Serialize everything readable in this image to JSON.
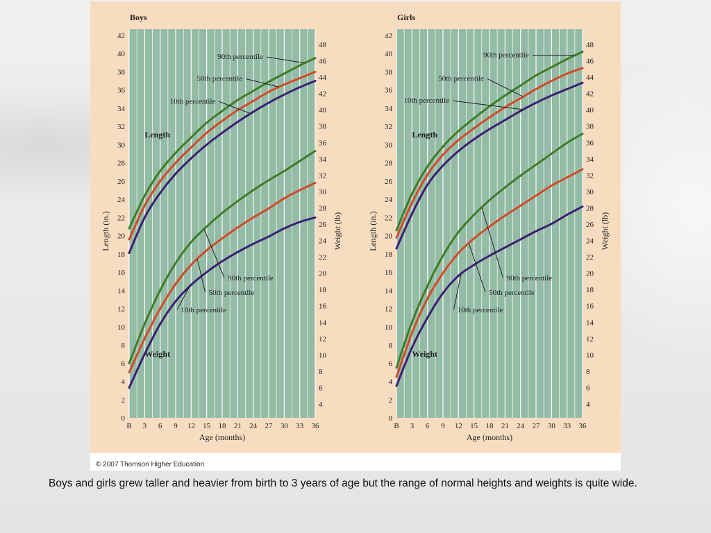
{
  "credit": "© 2007 Thomson Higher Education",
  "caption": "Boys and girls grew taller and heavier from birth to 3 years of age but the range of normal heights and weights is quite wide.",
  "colors": {
    "plot_bg": "#94bba5",
    "panel_bg": "#f8dcc0",
    "p90": "#3f7d27",
    "p50": "#d24a2a",
    "p10": "#3d1f73"
  },
  "chart_data": [
    {
      "type": "line",
      "title": "Boys",
      "xlabel": "Age (months)",
      "ylabel_left": "Length (in.)",
      "ylabel_right": "Weight (lb)",
      "x_ticks": [
        "B",
        "3",
        "6",
        "9",
        "12",
        "15",
        "18",
        "21",
        "24",
        "27",
        "30",
        "33",
        "36"
      ],
      "x_values": [
        0,
        3,
        6,
        9,
        12,
        15,
        18,
        21,
        24,
        27,
        30,
        33,
        36
      ],
      "xlim": [
        0,
        36
      ],
      "ylim_left": [
        0,
        42
      ],
      "y_ticks_left": [
        0,
        2,
        4,
        6,
        8,
        10,
        12,
        14,
        16,
        18,
        20,
        22,
        24,
        26,
        28,
        30,
        32,
        34,
        36,
        38,
        40,
        42
      ],
      "ylim_right": [
        4,
        48
      ],
      "y_ticks_right": [
        4,
        6,
        8,
        10,
        12,
        14,
        16,
        18,
        20,
        22,
        24,
        26,
        28,
        30,
        32,
        34,
        36,
        38,
        40,
        42,
        44,
        46,
        48
      ],
      "grid": true,
      "group_labels": [
        {
          "text": "Length",
          "x": 3,
          "y": 30.8
        },
        {
          "text": "Weight",
          "x": 3,
          "y": 6.7
        }
      ],
      "series": [
        {
          "group": "Length",
          "name": "90th percentile",
          "percentile": "p90",
          "axis": "left",
          "x": [
            0,
            3,
            6,
            9,
            12,
            15,
            18,
            21,
            24,
            27,
            30,
            33,
            36
          ],
          "y": [
            20.8,
            24.4,
            27.1,
            29.1,
            30.8,
            32.4,
            33.7,
            34.9,
            35.9,
            36.9,
            37.8,
            38.7,
            39.5
          ]
        },
        {
          "group": "Length",
          "name": "50th percentile",
          "percentile": "p50",
          "axis": "left",
          "x": [
            0,
            3,
            6,
            9,
            12,
            15,
            18,
            21,
            24,
            27,
            30,
            33,
            36
          ],
          "y": [
            19.6,
            23.3,
            26.0,
            28.0,
            29.7,
            31.3,
            32.6,
            33.8,
            34.8,
            35.8,
            36.6,
            37.3,
            38.0
          ]
        },
        {
          "group": "Length",
          "name": "10th percentile",
          "percentile": "p10",
          "axis": "left",
          "x": [
            0,
            3,
            6,
            9,
            12,
            15,
            18,
            21,
            24,
            27,
            30,
            33,
            36
          ],
          "y": [
            18.1,
            22.0,
            24.7,
            26.8,
            28.5,
            30.0,
            31.3,
            32.5,
            33.6,
            34.6,
            35.5,
            36.3,
            37.0
          ]
        },
        {
          "group": "Weight",
          "name": "90th percentile",
          "percentile": "p90",
          "axis": "left",
          "x": [
            0,
            3,
            6,
            9,
            12,
            15,
            18,
            21,
            24,
            27,
            30,
            33,
            36
          ],
          "y": [
            6.0,
            10.3,
            14.0,
            17.0,
            19.3,
            21.0,
            22.5,
            23.8,
            25.0,
            26.1,
            27.1,
            28.2,
            29.3
          ]
        },
        {
          "group": "Weight",
          "name": "50th percentile",
          "percentile": "p50",
          "axis": "left",
          "x": [
            0,
            3,
            6,
            9,
            12,
            15,
            18,
            21,
            24,
            27,
            30,
            33,
            36
          ],
          "y": [
            5.0,
            8.7,
            12.0,
            14.7,
            16.8,
            18.4,
            19.7,
            20.9,
            22.0,
            23.0,
            24.1,
            25.0,
            25.8
          ]
        },
        {
          "group": "Weight",
          "name": "10th percentile",
          "percentile": "p10",
          "axis": "left",
          "x": [
            0,
            3,
            6,
            9,
            12,
            15,
            18,
            21,
            24,
            27,
            30,
            33,
            36
          ],
          "y": [
            3.3,
            7.0,
            10.3,
            12.8,
            14.6,
            16.0,
            17.2,
            18.2,
            19.1,
            19.9,
            20.8,
            21.5,
            22.0
          ]
        }
      ],
      "annotations": [
        {
          "text": "90th percentile",
          "series_ref": 0,
          "at_x": 34,
          "label_x": 21.5,
          "label_y": 39.4
        },
        {
          "text": "50th percentile",
          "series_ref": 1,
          "at_x": 29,
          "label_x": 17.5,
          "label_y": 37.0
        },
        {
          "text": "10th percentile",
          "series_ref": 2,
          "at_x": 23.5,
          "label_x": 12.3,
          "label_y": 34.5
        },
        {
          "text": "90th percentile",
          "series_ref": 3,
          "at_x": 14.5,
          "label_x": 23.5,
          "label_y": 15.1
        },
        {
          "text": "50th percentile",
          "series_ref": 4,
          "at_x": 13.2,
          "label_x": 19.8,
          "label_y": 13.5
        },
        {
          "text": "10th percentile",
          "series_ref": 5,
          "at_x": 11.7,
          "label_x": 14.4,
          "label_y": 11.6
        }
      ]
    },
    {
      "type": "line",
      "title": "Girls",
      "xlabel": "Age (months)",
      "ylabel_left": "Length (in.)",
      "ylabel_right": "Weight (lb)",
      "x_ticks": [
        "B",
        "3",
        "6",
        "9",
        "12",
        "15",
        "18",
        "21",
        "24",
        "27",
        "30",
        "33",
        "36"
      ],
      "x_values": [
        0,
        3,
        6,
        9,
        12,
        15,
        18,
        21,
        24,
        27,
        30,
        33,
        36
      ],
      "xlim": [
        0,
        36
      ],
      "ylim_left": [
        0,
        42
      ],
      "y_ticks_left": [
        0,
        2,
        4,
        6,
        8,
        10,
        12,
        14,
        16,
        18,
        20,
        22,
        24,
        26,
        28,
        30,
        32,
        34,
        36,
        38,
        40,
        42
      ],
      "ylim_right": [
        4,
        48
      ],
      "y_ticks_right": [
        4,
        6,
        8,
        10,
        12,
        14,
        16,
        18,
        20,
        22,
        24,
        26,
        28,
        30,
        32,
        34,
        36,
        38,
        40,
        42,
        44,
        46,
        48
      ],
      "grid": true,
      "group_labels": [
        {
          "text": "Length",
          "x": 3,
          "y": 30.8
        },
        {
          "text": "Weight",
          "x": 3,
          "y": 6.7
        }
      ],
      "series": [
        {
          "group": "Length",
          "name": "90th percentile",
          "percentile": "p90",
          "axis": "left",
          "x": [
            0,
            3,
            6,
            9,
            12,
            15,
            18,
            21,
            24,
            27,
            30,
            33,
            36
          ],
          "y": [
            20.6,
            24.6,
            27.6,
            29.8,
            31.5,
            32.9,
            34.2,
            35.4,
            36.5,
            37.6,
            38.5,
            39.4,
            40.2
          ]
        },
        {
          "group": "Length",
          "name": "50th percentile",
          "percentile": "p50",
          "axis": "left",
          "x": [
            0,
            3,
            6,
            9,
            12,
            15,
            18,
            21,
            24,
            27,
            30,
            33,
            36
          ],
          "y": [
            19.8,
            23.6,
            26.7,
            28.9,
            30.5,
            31.8,
            33.0,
            34.1,
            35.1,
            36.1,
            37.0,
            37.8,
            38.4
          ]
        },
        {
          "group": "Length",
          "name": "10th percentile",
          "percentile": "p10",
          "axis": "left",
          "x": [
            0,
            3,
            6,
            9,
            12,
            15,
            18,
            21,
            24,
            27,
            30,
            33,
            36
          ],
          "y": [
            18.6,
            22.4,
            25.6,
            27.7,
            29.3,
            30.6,
            31.7,
            32.7,
            33.7,
            34.6,
            35.4,
            36.1,
            36.8
          ]
        },
        {
          "group": "Weight",
          "name": "90th percentile",
          "percentile": "p90",
          "axis": "left",
          "x": [
            0,
            3,
            6,
            9,
            12,
            15,
            18,
            21,
            24,
            27,
            30,
            33,
            36
          ],
          "y": [
            5.5,
            10.5,
            14.5,
            17.8,
            20.4,
            22.3,
            23.9,
            25.3,
            26.6,
            27.8,
            29.0,
            30.2,
            31.2
          ]
        },
        {
          "group": "Weight",
          "name": "50th percentile",
          "percentile": "p50",
          "axis": "left",
          "x": [
            0,
            3,
            6,
            9,
            12,
            15,
            18,
            21,
            24,
            27,
            30,
            33,
            36
          ],
          "y": [
            4.5,
            9.3,
            13.1,
            15.9,
            18.1,
            19.7,
            21.0,
            22.2,
            23.3,
            24.4,
            25.5,
            26.4,
            27.3
          ]
        },
        {
          "group": "Weight",
          "name": "10th percentile",
          "percentile": "p10",
          "axis": "left",
          "x": [
            0,
            3,
            6,
            9,
            12,
            15,
            18,
            21,
            24,
            27,
            30,
            33,
            36
          ],
          "y": [
            3.5,
            7.7,
            11.0,
            13.7,
            15.6,
            16.8,
            17.8,
            18.7,
            19.6,
            20.5,
            21.3,
            22.3,
            23.2
          ]
        }
      ],
      "annotations": [
        {
          "text": "90th percentile",
          "series_ref": 0,
          "at_x": 34.5,
          "label_x": 21.2,
          "label_y": 39.6
        },
        {
          "text": "50th percentile",
          "series_ref": 1,
          "at_x": 24.5,
          "label_x": 12.5,
          "label_y": 37.0
        },
        {
          "text": "10th percentile",
          "series_ref": 2,
          "at_x": 24.5,
          "label_x": 5.8,
          "label_y": 34.6
        },
        {
          "text": "90th percentile",
          "series_ref": 3,
          "at_x": 16.5,
          "label_x": 25.7,
          "label_y": 15.1
        },
        {
          "text": "50th percentile",
          "series_ref": 4,
          "at_x": 14.0,
          "label_x": 22.3,
          "label_y": 13.5
        },
        {
          "text": "10th percentile",
          "series_ref": 5,
          "at_x": 12.5,
          "label_x": 16.2,
          "label_y": 11.6
        }
      ]
    }
  ]
}
